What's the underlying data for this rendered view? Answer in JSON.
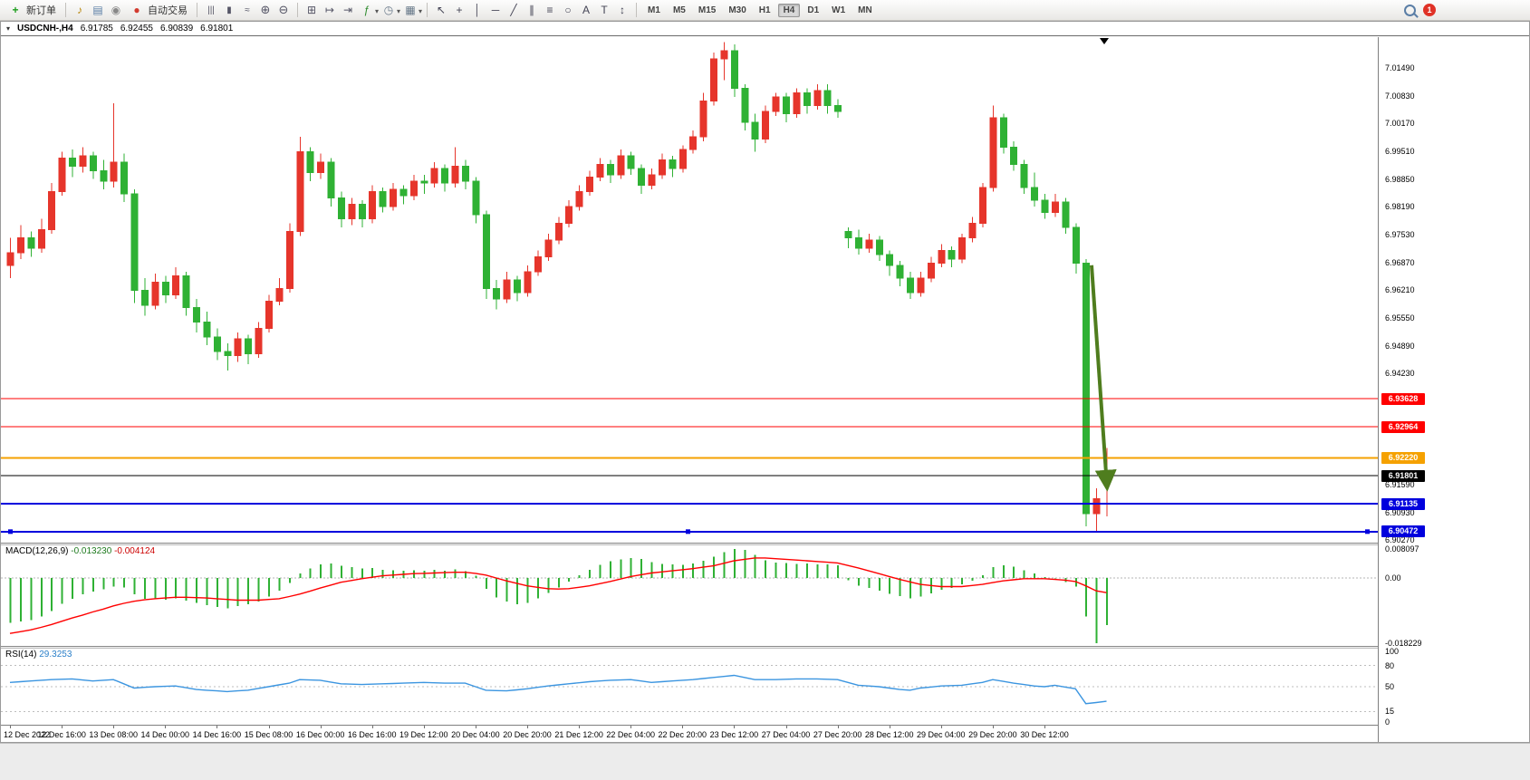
{
  "toolbar": {
    "new_order_label": "新订单",
    "auto_trading_label": "自动交易",
    "left_icons": [
      {
        "name": "alert-icon",
        "glyph": "♪",
        "color": "#b8860b"
      },
      {
        "name": "print-icon",
        "glyph": "▤",
        "color": "#5a7ea6"
      },
      {
        "name": "refresh-icon",
        "glyph": "◉",
        "color": "#888888"
      }
    ],
    "chart_mode_icons": [
      {
        "name": "bar-chart-icon",
        "glyph": "|||"
      },
      {
        "name": "candlestick-chart-icon",
        "glyph": "▮"
      },
      {
        "name": "line-chart-icon",
        "glyph": "≈"
      }
    ],
    "zoom_icons": [
      {
        "name": "zoom-in-icon",
        "glyph": "⊕"
      },
      {
        "name": "zoom-out-icon",
        "glyph": "⊖"
      }
    ],
    "window_icons": [
      {
        "name": "tile-windows-icon",
        "glyph": "⊞"
      },
      {
        "name": "auto-scroll-icon",
        "glyph": "↦"
      },
      {
        "name": "chart-shift-icon",
        "glyph": "⇥"
      }
    ],
    "insert_icons": [
      {
        "name": "indicators-icon",
        "glyph": "ƒ",
        "color": "#2e8b2e"
      },
      {
        "name": "periods-icon",
        "glyph": "◷",
        "color": "#667788"
      },
      {
        "name": "templates-icon",
        "glyph": "▦",
        "color": "#667788"
      }
    ],
    "tools": [
      {
        "name": "cursor-icon",
        "glyph": "↖"
      },
      {
        "name": "crosshair-icon",
        "glyph": "+"
      },
      {
        "name": "vertical-line-icon",
        "glyph": "│"
      },
      {
        "name": "horizontal-line-icon",
        "glyph": "─"
      },
      {
        "name": "trendline-icon",
        "glyph": "╱"
      },
      {
        "name": "channel-icon",
        "glyph": "∥"
      },
      {
        "name": "fibonacci-icon",
        "glyph": "≡"
      },
      {
        "name": "shapes-icon",
        "glyph": "○"
      },
      {
        "name": "text-icon",
        "glyph": "A"
      },
      {
        "name": "label-icon",
        "glyph": "T"
      },
      {
        "name": "arrows-icon",
        "glyph": "↕"
      }
    ],
    "timeframes": [
      "M1",
      "M5",
      "M15",
      "M30",
      "H1",
      "H4",
      "D1",
      "W1",
      "MN"
    ],
    "active_timeframe": "H4",
    "notification_count": "1"
  },
  "window": {
    "menu_icon": "▾",
    "symbol": "USDCNH-,H4",
    "open": "6.91785",
    "high": "6.92455",
    "low": "6.90839",
    "close": "6.91801"
  },
  "chart_data": {
    "type": "candlestick",
    "symbol": "USDCNH",
    "timeframe": "H4",
    "y_range": [
      7.0222,
      6.9021
    ],
    "colors": {
      "up": "#e6352b",
      "down": "#2fb134"
    },
    "price_axis": [
      "7.01490",
      "7.00830",
      "7.00170",
      "6.99510",
      "6.98850",
      "6.98190",
      "6.97530",
      "6.96870",
      "6.96210",
      "6.95550",
      "6.94890",
      "6.94230",
      "6.93570",
      "6.92910",
      "6.92250",
      "6.91590",
      "6.90930",
      "6.90270"
    ],
    "hlines": [
      {
        "label": "6.93628",
        "price": 6.93628,
        "color": "#ff0000",
        "width": 1
      },
      {
        "label": "6.92964",
        "price": 6.92964,
        "color": "#ff0000",
        "width": 1
      },
      {
        "label": "6.92220",
        "price": 6.9222,
        "color": "#f5a100",
        "width": 2
      },
      {
        "label": "6.91801",
        "price": 6.91801,
        "color": "#000000",
        "width": 1
      },
      {
        "label": "6.91135",
        "price": 6.91135,
        "color": "#0000dd",
        "width": 2
      },
      {
        "label": "6.90472",
        "price": 6.90472,
        "color": "#0000dd",
        "width": 2,
        "selected": true
      }
    ],
    "arrow": {
      "x_start": 1204,
      "price_start": 6.968,
      "x_end": 1221,
      "price_end": 6.9155,
      "color": "#4f7d1e"
    },
    "date_labels": [
      "12 Dec 2022",
      "12 Dec 16:00",
      "13 Dec 08:00",
      "14 Dec 00:00",
      "14 Dec 16:00",
      "15 Dec 08:00",
      "16 Dec 00:00",
      "16 Dec 16:00",
      "19 Dec 12:00",
      "20 Dec 04:00",
      "20 Dec 20:00",
      "21 Dec 12:00",
      "22 Dec 04:00",
      "22 Dec 20:00",
      "23 Dec 12:00",
      "27 Dec 04:00",
      "27 Dec 20:00",
      "28 Dec 12:00",
      "29 Dec 04:00",
      "29 Dec 20:00",
      "30 Dec 12:00"
    ],
    "label_every": 5,
    "candles": [
      [
        6.968,
        6.9745,
        6.965,
        6.971
      ],
      [
        6.971,
        6.9775,
        6.9695,
        6.9745
      ],
      [
        6.9745,
        6.976,
        6.97,
        6.972
      ],
      [
        6.972,
        6.979,
        6.971,
        6.9765
      ],
      [
        6.9765,
        6.9875,
        6.9755,
        6.9855
      ],
      [
        6.9855,
        6.995,
        6.9845,
        6.9935
      ],
      [
        6.9935,
        6.9955,
        6.989,
        6.9915
      ],
      [
        6.9915,
        6.996,
        6.99,
        6.994
      ],
      [
        6.994,
        6.995,
        6.9885,
        6.9905
      ],
      [
        6.9905,
        6.993,
        6.986,
        6.988
      ],
      [
        6.988,
        7.0065,
        6.9865,
        6.9925
      ],
      [
        6.9925,
        6.9945,
        6.983,
        6.985
      ],
      [
        6.985,
        6.986,
        6.959,
        6.962
      ],
      [
        6.962,
        6.965,
        6.956,
        6.9585
      ],
      [
        6.9585,
        6.966,
        6.9575,
        6.964
      ],
      [
        6.964,
        6.9655,
        6.959,
        6.961
      ],
      [
        6.961,
        6.9675,
        6.96,
        6.9655
      ],
      [
        6.9655,
        6.9665,
        6.956,
        6.958
      ],
      [
        6.958,
        6.96,
        6.952,
        6.9545
      ],
      [
        6.9545,
        6.957,
        6.949,
        6.951
      ],
      [
        6.951,
        6.953,
        6.9455,
        6.9475
      ],
      [
        6.9475,
        6.9495,
        6.943,
        6.9465
      ],
      [
        6.9465,
        6.952,
        6.945,
        6.9505
      ],
      [
        6.9505,
        6.9515,
        6.9445,
        6.947
      ],
      [
        6.947,
        6.9545,
        6.946,
        6.953
      ],
      [
        6.953,
        6.961,
        6.952,
        6.9595
      ],
      [
        6.9595,
        6.965,
        6.9585,
        6.9625
      ],
      [
        6.9625,
        6.978,
        6.9615,
        6.976
      ],
      [
        6.976,
        6.9985,
        6.975,
        6.995
      ],
      [
        6.995,
        6.996,
        6.988,
        6.99
      ],
      [
        6.99,
        6.9945,
        6.9885,
        6.9925
      ],
      [
        6.9925,
        6.9935,
        6.982,
        6.984
      ],
      [
        6.984,
        6.9855,
        6.977,
        6.979
      ],
      [
        6.979,
        6.984,
        6.9775,
        6.9825
      ],
      [
        6.9825,
        6.9835,
        6.977,
        6.979
      ],
      [
        6.979,
        6.987,
        6.978,
        6.9855
      ],
      [
        6.9855,
        6.9865,
        6.9805,
        6.982
      ],
      [
        6.982,
        6.9875,
        6.981,
        6.986
      ],
      [
        6.986,
        6.987,
        6.9825,
        6.9845
      ],
      [
        6.9845,
        6.9895,
        6.9835,
        6.988
      ],
      [
        6.988,
        6.9895,
        6.985,
        6.9875
      ],
      [
        6.9875,
        6.9925,
        6.9865,
        6.991
      ],
      [
        6.991,
        6.992,
        6.9855,
        6.9875
      ],
      [
        6.9875,
        6.996,
        6.9865,
        6.9915
      ],
      [
        6.9915,
        6.993,
        6.986,
        6.988
      ],
      [
        6.988,
        6.989,
        6.978,
        6.98
      ],
      [
        6.98,
        6.981,
        6.96,
        6.9625
      ],
      [
        6.9625,
        6.9645,
        6.9575,
        6.96
      ],
      [
        6.96,
        6.9665,
        6.959,
        6.9645
      ],
      [
        6.9645,
        6.9655,
        6.9595,
        6.9615
      ],
      [
        6.9615,
        6.968,
        6.9605,
        6.9665
      ],
      [
        6.9665,
        6.9715,
        6.9655,
        6.97
      ],
      [
        6.97,
        6.9755,
        6.969,
        6.974
      ],
      [
        6.974,
        6.9795,
        6.973,
        6.978
      ],
      [
        6.978,
        6.9835,
        6.977,
        6.982
      ],
      [
        6.982,
        6.987,
        6.981,
        6.9855
      ],
      [
        6.9855,
        6.9905,
        6.9845,
        6.989
      ],
      [
        6.989,
        6.9935,
        6.988,
        6.992
      ],
      [
        6.992,
        6.993,
        6.9875,
        6.9895
      ],
      [
        6.9895,
        6.9955,
        6.9885,
        6.994
      ],
      [
        6.994,
        6.995,
        6.9895,
        6.991
      ],
      [
        6.991,
        6.992,
        6.985,
        6.987
      ],
      [
        6.987,
        6.991,
        6.986,
        6.9895
      ],
      [
        6.9895,
        6.9945,
        6.9885,
        6.993
      ],
      [
        6.993,
        6.994,
        6.989,
        6.991
      ],
      [
        6.991,
        6.9965,
        6.99,
        6.9955
      ],
      [
        6.9955,
        7.0,
        6.9945,
        6.9985
      ],
      [
        6.9985,
        7.009,
        6.9975,
        7.007
      ],
      [
        7.007,
        7.0185,
        7.006,
        7.017
      ],
      [
        7.017,
        7.021,
        7.012,
        7.019
      ],
      [
        7.019,
        7.0205,
        7.008,
        7.01
      ],
      [
        7.01,
        7.011,
        7.0,
        7.002
      ],
      [
        7.002,
        7.004,
        6.995,
        6.998
      ],
      [
        6.998,
        7.006,
        6.997,
        7.0045
      ],
      [
        7.0045,
        7.009,
        7.0035,
        7.008
      ],
      [
        7.008,
        7.009,
        7.002,
        7.004
      ],
      [
        7.004,
        7.01,
        7.003,
        7.009
      ],
      [
        7.009,
        7.01,
        7.004,
        7.006
      ],
      [
        7.006,
        7.011,
        7.005,
        7.0095
      ],
      [
        7.0095,
        7.011,
        7.004,
        7.006
      ],
      [
        7.006,
        7.0075,
        7.003,
        7.0045
      ],
      [
        6.976,
        6.977,
        6.972,
        6.9745
      ],
      [
        6.9745,
        6.9765,
        6.9705,
        6.972
      ],
      [
        6.972,
        6.9755,
        6.971,
        6.974
      ],
      [
        6.974,
        6.975,
        6.969,
        6.9705
      ],
      [
        6.9705,
        6.9715,
        6.9655,
        6.968
      ],
      [
        6.968,
        6.969,
        6.963,
        6.965
      ],
      [
        6.965,
        6.9665,
        6.96,
        6.9615
      ],
      [
        6.9615,
        6.9665,
        6.9605,
        6.965
      ],
      [
        6.965,
        6.97,
        6.964,
        6.9685
      ],
      [
        6.9685,
        6.973,
        6.9675,
        6.9715
      ],
      [
        6.9715,
        6.9725,
        6.9675,
        6.9695
      ],
      [
        6.9695,
        6.9755,
        6.9685,
        6.9745
      ],
      [
        6.9745,
        6.9795,
        6.9735,
        6.978
      ],
      [
        6.978,
        6.9875,
        6.977,
        6.9865
      ],
      [
        6.9865,
        7.006,
        6.9855,
        7.003
      ],
      [
        7.003,
        7.004,
        6.9945,
        6.996
      ],
      [
        6.996,
        6.9975,
        6.9905,
        6.992
      ],
      [
        6.992,
        6.993,
        6.985,
        6.9865
      ],
      [
        6.9865,
        6.99,
        6.982,
        6.9835
      ],
      [
        6.9835,
        6.985,
        6.979,
        6.9805
      ],
      [
        6.9805,
        6.985,
        6.9795,
        6.983
      ],
      [
        6.983,
        6.984,
        6.9755,
        6.977
      ],
      [
        6.977,
        6.978,
        6.966,
        6.9685
      ],
      [
        6.9685,
        6.9695,
        6.906,
        6.909
      ],
      [
        6.909,
        6.915,
        6.9047,
        6.9125
      ],
      [
        6.91785,
        6.92455,
        6.90839,
        6.91801
      ]
    ]
  },
  "macd": {
    "name": "MACD(12,26,9)",
    "main_value": "-0.013230",
    "signal_value": "-0.004124",
    "axis_labels": [
      "0.008097",
      "0.00",
      "-0.018229"
    ],
    "axis_values": [
      0.008097,
      0,
      -0.018229
    ],
    "y_range": [
      0.009109,
      -0.018985
    ],
    "colors": {
      "histogram": "#2fb134",
      "signal": "#ff0000",
      "main_text": "#1e7a1e",
      "signal_text": "#cc0000"
    },
    "histogram": [
      -0.0125,
      -0.0122,
      -0.0118,
      -0.0108,
      -0.0092,
      -0.0072,
      -0.0058,
      -0.0046,
      -0.0038,
      -0.0032,
      -0.0024,
      -0.0026,
      -0.0045,
      -0.0058,
      -0.006,
      -0.0061,
      -0.0057,
      -0.0063,
      -0.007,
      -0.0076,
      -0.0081,
      -0.0085,
      -0.0079,
      -0.0074,
      -0.0066,
      -0.0052,
      -0.0036,
      -0.0014,
      0.0012,
      0.0026,
      0.0038,
      0.0041,
      0.0034,
      0.003,
      0.0026,
      0.0028,
      0.0023,
      0.0022,
      0.002,
      0.0022,
      0.002,
      0.0023,
      0.002,
      0.0024,
      0.0019,
      0.0006,
      -0.003,
      -0.0055,
      -0.0066,
      -0.0074,
      -0.0069,
      -0.0057,
      -0.0042,
      -0.0026,
      -0.001,
      0.0007,
      0.0023,
      0.0037,
      0.0047,
      0.0052,
      0.0056,
      0.0053,
      0.0044,
      0.0039,
      0.0038,
      0.0037,
      0.004,
      0.0048,
      0.0059,
      0.0072,
      0.0081,
      0.0079,
      0.0064,
      0.0049,
      0.0043,
      0.0042,
      0.0039,
      0.004,
      0.0038,
      0.0038,
      0.0036,
      -0.0006,
      -0.0021,
      -0.0028,
      -0.0036,
      -0.0044,
      -0.0051,
      -0.0057,
      -0.0052,
      -0.0043,
      -0.0033,
      -0.0028,
      -0.0018,
      -0.0008,
      0.0007,
      0.003,
      0.0035,
      0.0031,
      0.0022,
      0.0013,
      0.0003,
      -0.0001,
      -0.0011,
      -0.0024,
      -0.0108,
      -0.0182,
      -0.0132
    ],
    "signal": [
      -0.0155,
      -0.015,
      -0.0145,
      -0.0138,
      -0.013,
      -0.0121,
      -0.0112,
      -0.0104,
      -0.0095,
      -0.0087,
      -0.0078,
      -0.0071,
      -0.0065,
      -0.0061,
      -0.0058,
      -0.0056,
      -0.0054,
      -0.0054,
      -0.0055,
      -0.0056,
      -0.0058,
      -0.006,
      -0.0062,
      -0.0062,
      -0.0062,
      -0.006,
      -0.0058,
      -0.0052,
      -0.0045,
      -0.0037,
      -0.0028,
      -0.002,
      -0.0012,
      -0.0007,
      -0.0002,
      0.0002,
      0.0006,
      0.0008,
      0.001,
      0.0012,
      0.0013,
      0.0014,
      0.0015,
      0.0016,
      0.0016,
      0.0013,
      0.0008,
      0.0,
      -0.0008,
      -0.0015,
      -0.0022,
      -0.0026,
      -0.003,
      -0.0031,
      -0.003,
      -0.0026,
      -0.0022,
      -0.0016,
      -0.001,
      -0.0003,
      0.0004,
      0.0009,
      0.0014,
      0.0017,
      0.002,
      0.0023,
      0.0026,
      0.003,
      0.0034,
      0.0041,
      0.0048,
      0.0052,
      0.0056,
      0.0056,
      0.0054,
      0.0052,
      0.005,
      0.0048,
      0.0046,
      0.0044,
      0.0042,
      0.0035,
      0.0028,
      0.002,
      0.0012,
      0.0004,
      -0.0004,
      -0.0011,
      -0.0018,
      -0.0021,
      -0.0024,
      -0.0024,
      -0.0024,
      -0.0021,
      -0.0018,
      -0.0013,
      -0.0008,
      -0.0005,
      -0.0002,
      -0.0002,
      -0.0002,
      -0.0004,
      -0.0006,
      -0.001,
      -0.0022,
      -0.0036,
      -0.0041
    ]
  },
  "rsi": {
    "name": "RSI(14)",
    "value": "29.3253",
    "axis_labels": [
      "100",
      "80",
      "50",
      "15",
      "0"
    ],
    "axis_values": [
      100,
      80,
      50,
      15,
      0
    ],
    "levels": [
      80,
      50,
      15
    ],
    "y_range": [
      103.8,
      -3.9
    ],
    "color": "#3b95e0",
    "value_text": "#2a7fc9",
    "values": [
      56,
      57,
      58,
      59,
      60,
      60.5,
      61,
      59.5,
      58,
      59,
      60,
      54,
      48,
      49,
      50,
      50.5,
      51,
      48.5,
      46,
      45,
      44,
      43,
      44,
      45,
      47.5,
      50,
      52.5,
      55,
      60,
      59.5,
      59,
      56.5,
      54,
      53.5,
      53,
      53.5,
      54,
      54.5,
      55,
      55.5,
      56,
      55.5,
      55,
      55,
      55,
      50,
      45,
      44.5,
      44,
      45.5,
      47,
      49,
      51,
      52.5,
      54,
      55.5,
      57,
      58,
      59,
      59.5,
      60,
      58,
      56,
      57,
      58,
      59,
      60,
      61.5,
      63,
      64.5,
      66,
      63,
      60,
      60,
      60,
      60.5,
      61,
      61,
      61,
      60.5,
      60,
      56,
      52,
      51,
      50,
      48,
      46,
      45,
      48,
      49.5,
      51,
      51.5,
      52,
      54,
      56,
      60,
      57.5,
      55,
      53,
      51,
      50,
      52,
      49.5,
      47,
      26,
      27.5,
      29.3
    ]
  }
}
